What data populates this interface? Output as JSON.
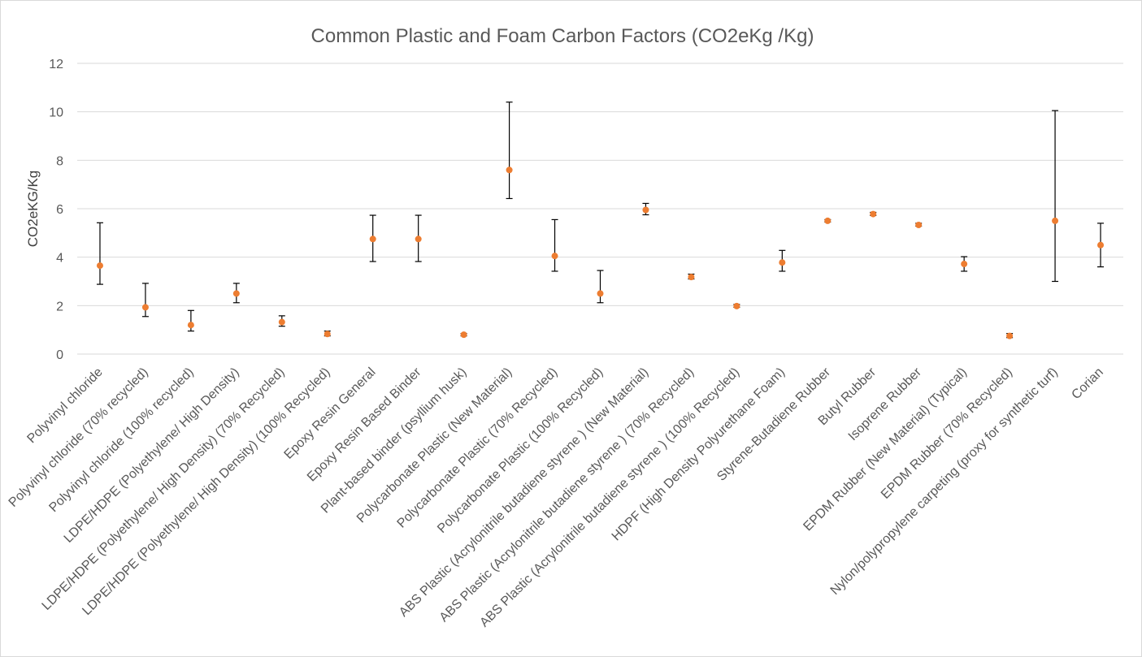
{
  "chart_data": {
    "type": "scatter",
    "title": "Common Plastic and Foam Carbon Factors (CO2eKg /Kg)",
    "xlabel": "",
    "ylabel": "CO2eKG/Kg",
    "ylim": [
      0,
      12
    ],
    "yticks": [
      0,
      2,
      4,
      6,
      8,
      10,
      12
    ],
    "grid": true,
    "legend": "none",
    "colors": {
      "marker": "#ED7D31",
      "errorbar": "#000000",
      "grid": "#D9D9D9",
      "text": "#595959"
    },
    "categories": [
      "Polyvinyl chloride",
      "Polyvinyl chloride (70% recycled)",
      "Polyvinyl chloride (100% recycled)",
      "LDPE/HDPE (Polyethylene/ High Density)",
      "LDPE/HDPE (Polyethylene/ High Density) (70% Recycled)",
      "LDPE/HDPE (Polyethylene/ High Density) (100% Recycled)",
      "Epoxy Resin General",
      "Epoxy Resin Based Binder",
      "Plant-based binder (psyllium husk)",
      "Polycarbonate Plastic (New Material)",
      "Polycarbonate Plastic (70% Recycled)",
      "Polycarbonate Plastic (100% Recycled)",
      "ABS Plastic (Acrylonitrile butadiene styrene ) (New Material)",
      "ABS Plastic (Acrylonitrile butadiene styrene ) (70% Recycled)",
      "ABS Plastic (Acrylonitrile butadiene styrene ) (100% Recycled)",
      "HDPF (High Density Polyurethane Foam)",
      "Styrene-Butadiene Rubber",
      "Butyl Rubber",
      "Isoprene Rubber",
      "EPDM Rubber (New Material) (Typical)",
      "EPDM Rubber (70% Recycled)",
      "Nylon/polypropylene carpeting (proxy for synthetic turf)",
      "Corian"
    ],
    "values": [
      3.65,
      1.93,
      1.2,
      2.5,
      1.32,
      0.83,
      4.75,
      4.75,
      0.8,
      7.6,
      4.05,
      2.5,
      5.95,
      3.18,
      1.98,
      3.78,
      5.5,
      5.78,
      5.33,
      3.72,
      0.75,
      5.5,
      4.5
    ],
    "error_low": [
      2.88,
      1.55,
      0.95,
      2.12,
      1.15,
      0.75,
      3.82,
      3.82,
      0.75,
      6.42,
      3.42,
      2.12,
      5.75,
      3.1,
      1.93,
      3.42,
      5.45,
      5.72,
      5.28,
      3.42,
      0.68,
      3.0,
      3.6
    ],
    "error_high": [
      5.42,
      2.92,
      1.8,
      2.92,
      1.58,
      0.95,
      5.73,
      5.73,
      0.85,
      10.4,
      5.55,
      3.45,
      6.22,
      3.3,
      2.05,
      4.28,
      5.55,
      5.85,
      5.4,
      4.02,
      0.85,
      10.05,
      5.4
    ]
  }
}
